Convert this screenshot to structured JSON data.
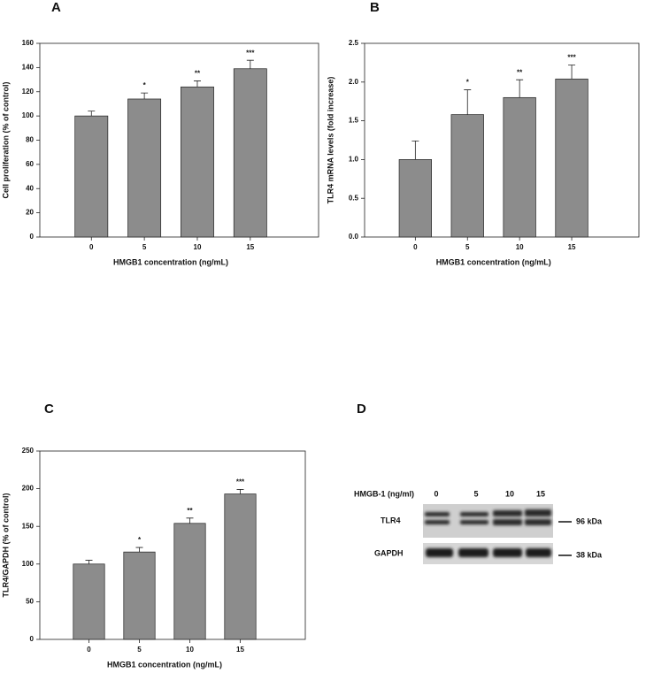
{
  "chart_data": [
    {
      "type": "bar",
      "panel": "A",
      "categories": [
        "0",
        "5",
        "10",
        "15"
      ],
      "values": [
        100,
        114,
        124,
        139
      ],
      "errors": [
        4,
        5,
        5,
        7
      ],
      "annotations": [
        null,
        "*",
        "**",
        "***"
      ],
      "color": "#8c8c8c",
      "xlabel": "HMGB1 concentration (ng/mL)",
      "ylabel": "Cell proliferation (% of control)",
      "ylim": [
        0,
        160
      ],
      "yticks": [
        0,
        20,
        40,
        60,
        80,
        100,
        120,
        140,
        160
      ]
    },
    {
      "type": "bar",
      "panel": "B",
      "categories": [
        "0",
        "5",
        "10",
        "15"
      ],
      "values": [
        1.0,
        1.58,
        1.8,
        2.04
      ],
      "errors": [
        0.24,
        0.32,
        0.23,
        0.18
      ],
      "annotations": [
        null,
        "*",
        "**",
        "***"
      ],
      "color": "#8c8c8c",
      "xlabel": "HMGB1 concentration (ng/mL)",
      "ylabel": "TLR4 mRNA levels (fold increase)",
      "ylim": [
        0,
        2.5
      ],
      "yticks": [
        {
          "value": 0,
          "label": "0.0"
        },
        0.5,
        {
          "value": 1,
          "label": "1.0"
        },
        1.5,
        {
          "value": 2,
          "label": "2.0"
        },
        2.5
      ]
    },
    {
      "type": "bar",
      "panel": "C",
      "categories": [
        "0",
        "5",
        "10",
        "15"
      ],
      "values": [
        100,
        116,
        154,
        193
      ],
      "errors": [
        5,
        6,
        7,
        6
      ],
      "annotations": [
        null,
        "*",
        "**",
        "***"
      ],
      "color": "#8c8c8c",
      "xlabel": "HMGB1 concentration (ng/mL)",
      "ylabel": "TLR4/GAPDH (% of control)",
      "ylim": [
        0,
        250
      ],
      "yticks": [
        0,
        50,
        100,
        150,
        200,
        250
      ]
    }
  ],
  "blot": {
    "panel": "D",
    "header": "HMGB-1 (ng/ml)",
    "lanes": [
      "0",
      "5",
      "10",
      "15"
    ],
    "rows": [
      {
        "name": "TLR4",
        "size": "96 kDa"
      },
      {
        "name": "GAPDH",
        "size": "38 kDa"
      }
    ]
  }
}
